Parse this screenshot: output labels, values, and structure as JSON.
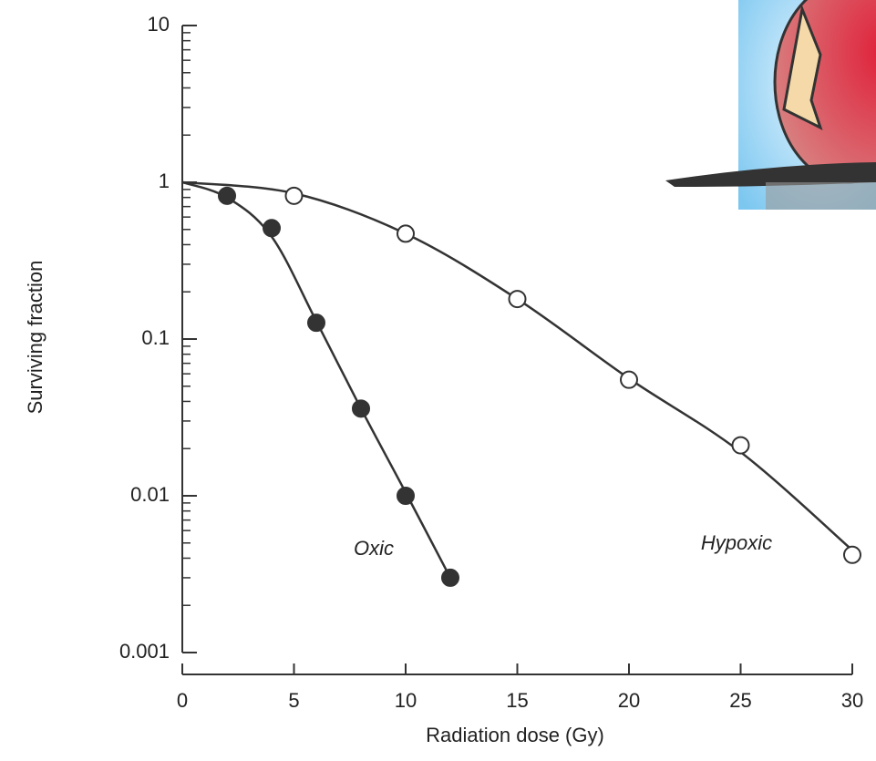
{
  "chart_data": {
    "type": "scatter",
    "log_y": true,
    "xlabel": "Radiation dose (Gy)",
    "ylabel": "Surviving fraction",
    "xlim": [
      0,
      30
    ],
    "xticks": [
      0,
      5,
      10,
      15,
      20,
      25,
      30
    ],
    "ylim": [
      0.001,
      10
    ],
    "yticks": [
      10,
      1,
      0.1,
      0.01,
      0.001
    ],
    "series": [
      {
        "name": "Oxic",
        "color": "#333333",
        "marker": "filled",
        "x": [
          2,
          4,
          6,
          8,
          10,
          12
        ],
        "values": [
          0.82,
          0.51,
          0.127,
          0.036,
          0.01,
          0.003
        ],
        "fit": {
          "x": [
            0,
            2,
            4,
            6,
            8,
            10,
            12
          ],
          "values": [
            1,
            0.8,
            0.45,
            0.13,
            0.036,
            0.0105,
            0.003
          ]
        }
      },
      {
        "name": "Hypoxic",
        "color": "#333333",
        "marker": "open",
        "x": [
          5,
          10,
          15,
          20,
          25,
          30
        ],
        "values": [
          0.82,
          0.47,
          0.18,
          0.055,
          0.021,
          0.0042
        ],
        "fit": {
          "x": [
            0,
            5,
            10,
            15,
            20,
            25,
            30
          ],
          "values": [
            1,
            0.85,
            0.47,
            0.18,
            0.056,
            0.019,
            0.0045
          ]
        }
      }
    ]
  }
}
